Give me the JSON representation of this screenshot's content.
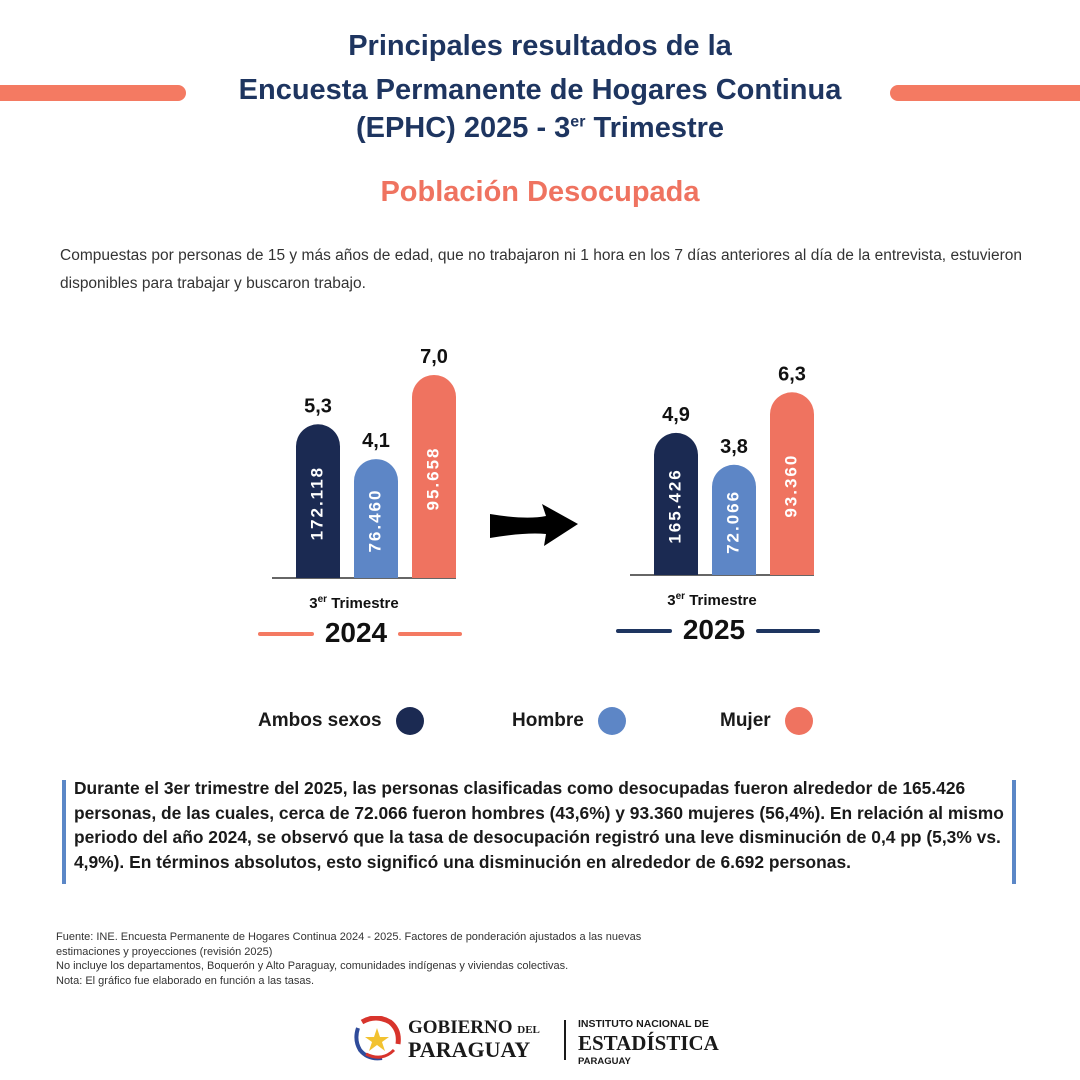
{
  "header": {
    "title_line1": "Principales resultados de la",
    "title_line2": "Encuesta Permanente de Hogares Continua",
    "title_line3_pre": "(EPHC) 2025 - 3",
    "title_line3_sup": "er",
    "title_line3_post": " Trimestre",
    "subtitle": "Población Desocupada",
    "description": "Compuestas por personas de 15 y más años de edad, que no trabajaron ni 1 hora en los 7 días anteriores al día de la entrevista, estuvieron disponibles para trabajar y buscaron trabajo."
  },
  "colors": {
    "ambos": "#1b2a52",
    "hombre": "#5d86c6",
    "mujer": "#ef7360",
    "accent_2024": "#f47a62",
    "accent_2025": "#1e3560"
  },
  "chart_data": [
    {
      "type": "bar",
      "year": "2024",
      "period_pre": "3",
      "period_sup": "er",
      "period_post": " Trimestre",
      "categories": [
        "Ambos sexos",
        "Hombre",
        "Mujer"
      ],
      "values": [
        5.3,
        4.1,
        7.0
      ],
      "value_labels": [
        "5,3",
        "4,1",
        "7,0"
      ],
      "counts": [
        "172.118",
        "76.460",
        "95.658"
      ]
    },
    {
      "type": "bar",
      "year": "2025",
      "period_pre": "3",
      "period_sup": "er",
      "period_post": " Trimestre",
      "categories": [
        "Ambos sexos",
        "Hombre",
        "Mujer"
      ],
      "values": [
        4.9,
        3.8,
        6.3
      ],
      "value_labels": [
        "4,9",
        "3,8",
        "6,3"
      ],
      "counts": [
        "165.426",
        "72.066",
        "93.360"
      ]
    }
  ],
  "legend": [
    {
      "label": "Ambos sexos",
      "color": "#1b2a52"
    },
    {
      "label": "Hombre",
      "color": "#5d86c6"
    },
    {
      "label": "Mujer",
      "color": "#ef7360"
    }
  ],
  "summary": "Durante el 3er trimestre del 2025, las personas clasificadas como desocupadas fueron alrededor de 165.426 personas, de las cuales, cerca de 72.066 fueron hombres (43,6%) y 93.360 mujeres (56,4%). En relación al mismo periodo del año 2024, se observó que la tasa de desocupación registró una leve disminución de 0,4 pp (5,3% vs. 4,9%). En términos absolutos, esto significó una disminución en alrededor de 6.692 personas.",
  "notes": {
    "source": "Fuente: INE. Encuesta Permanente de Hogares Continua 2024 - 2025.  Factores de ponderación ajustados a las nuevas\nestimaciones y proyecciones (revisión 2025)",
    "exclusion": "No incluye los departamentos, Boquerón y Alto Paraguay, comunidades indígenas y viviendas colectivas.",
    "note": "Nota: El gráfico fue elaborado en función a las tasas."
  },
  "footer": {
    "gov_line1": "GOBIERNO",
    "gov_del": "DEL",
    "gov_line2": "PARAGUAY",
    "ine_line1": "INSTITUTO NACIONAL DE",
    "ine_line2": "ESTADÍSTICA",
    "ine_line3": "PARAGUAY"
  }
}
